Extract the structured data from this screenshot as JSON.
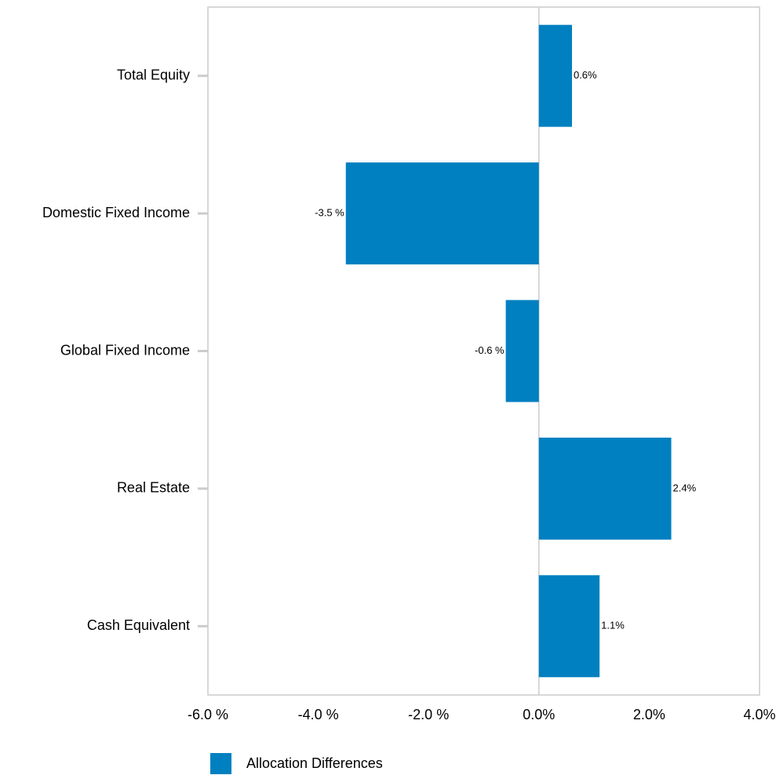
{
  "chart_data": {
    "type": "bar",
    "orientation": "horizontal",
    "categories": [
      "Total Equity",
      "Domestic Fixed Income",
      "Global Fixed Income",
      "Real Estate",
      "Cash Equivalent"
    ],
    "series": [
      {
        "name": "Allocation Differences",
        "values": [
          0.6,
          -3.5,
          -0.6,
          2.4,
          1.1
        ],
        "data_labels": [
          "0.6%",
          "-3.5 %",
          "-0.6 %",
          "2.4%",
          "1.1%"
        ],
        "color": "#0080c0"
      }
    ],
    "xlim": [
      -6.0,
      4.0
    ],
    "xticks": [
      -6.0,
      -4.0,
      -2.0,
      0.0,
      2.0,
      4.0
    ],
    "xtick_labels": [
      "-6.0 %",
      "-4.0 %",
      "-2.0 %",
      "0.0%",
      "2.0%",
      "4.0%"
    ],
    "legend": {
      "position": "bottom-left",
      "label": "Allocation Differences"
    },
    "grid": false,
    "axis_color": "#cccccc"
  }
}
